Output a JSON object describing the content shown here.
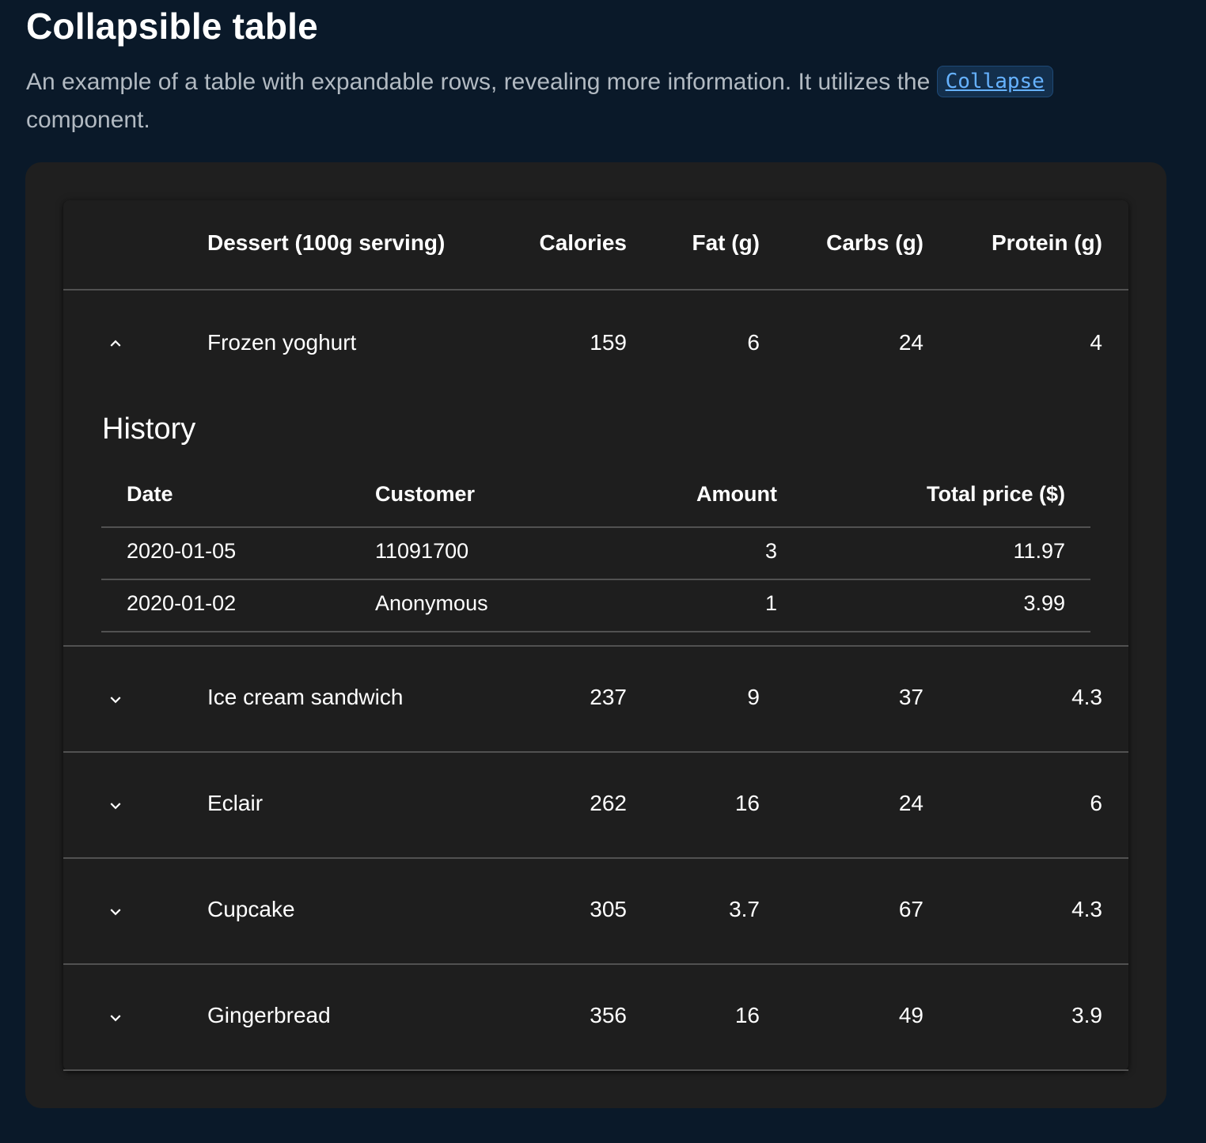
{
  "page": {
    "title": "Collapsible table",
    "intro_before": "An example of a table with expandable rows, revealing more information. It utilizes the ",
    "intro_code": "Collapse",
    "intro_after": " component."
  },
  "table": {
    "headers": [
      "Dessert (100g serving)",
      "Calories",
      "Fat (g)",
      "Carbs (g)",
      "Protein (g)"
    ],
    "rows": [
      {
        "name": "Frozen yoghurt",
        "calories": "159",
        "fat": "6",
        "carbs": "24",
        "protein": "4",
        "expanded": true,
        "icon": "chevron-up-icon"
      },
      {
        "name": "Ice cream sandwich",
        "calories": "237",
        "fat": "9",
        "carbs": "37",
        "protein": "4.3",
        "expanded": false,
        "icon": "chevron-down-icon"
      },
      {
        "name": "Eclair",
        "calories": "262",
        "fat": "16",
        "carbs": "24",
        "protein": "6",
        "expanded": false,
        "icon": "chevron-down-icon"
      },
      {
        "name": "Cupcake",
        "calories": "305",
        "fat": "3.7",
        "carbs": "67",
        "protein": "4.3",
        "expanded": false,
        "icon": "chevron-down-icon"
      },
      {
        "name": "Gingerbread",
        "calories": "356",
        "fat": "16",
        "carbs": "49",
        "protein": "3.9",
        "expanded": false,
        "icon": "chevron-down-icon"
      }
    ]
  },
  "history": {
    "title": "History",
    "headers": [
      "Date",
      "Customer",
      "Amount",
      "Total price ($)"
    ],
    "rows": [
      {
        "date": "2020-01-05",
        "customer": "11091700",
        "amount": "3",
        "total": "11.97"
      },
      {
        "date": "2020-01-02",
        "customer": "Anonymous",
        "amount": "1",
        "total": "3.99"
      }
    ]
  },
  "colors": {
    "page_background": "#0a1929",
    "demo_background": "#1f1f1f",
    "code_text": "#66b2ff",
    "divider": "#515151"
  }
}
